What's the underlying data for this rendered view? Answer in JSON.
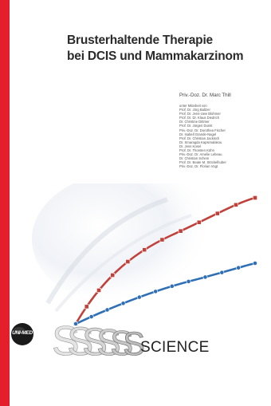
{
  "title_line1": "Brusterhaltende Therapie",
  "title_line2": "bei DCIS und Mammakarzinom",
  "author": "Priv.-Doz. Dr. Marc Thill",
  "contributors": [
    "unter Mitarbeit von",
    "Prof. Dr. Jörg Baltzer",
    "Prof. Dr. Jens-Uwe Blohmer",
    "Prof. Dr. Dr. Klaus Diedrich",
    "Dr. Christine Dittmer",
    "Prof. Dr. Jürgen Dunst",
    "Priv.-Doz. Dr. Dorothea Fischer",
    "Dr. Isabell Grande-Nagel",
    "Prof. Dr. Christian Jackisch",
    "Dr. Smaragda Kapsimalakou",
    "Dr. Jens Kosel",
    "Prof. Dr. Thorsten Kühn",
    "Priv.-Doz. Dr. Amelie Lebeau",
    "Dr. Christian Schem",
    "Prof. Dr. Beate M. Stöckelhuber",
    "Priv.-Doz. Dr. Florian Vogt"
  ],
  "logo_text": "UNI-MED",
  "series_word": "SCIENCE",
  "colors": {
    "accent_red": "#e41e2b",
    "curve_red": "#c0403a",
    "curve_blue": "#2f6fb5",
    "logo": "#1a1a1a"
  }
}
